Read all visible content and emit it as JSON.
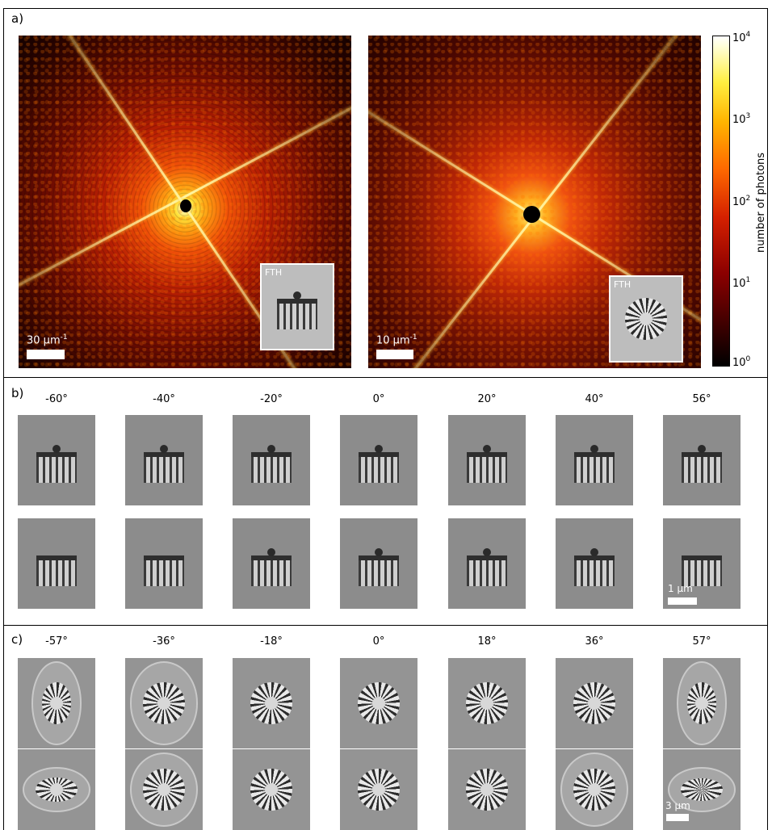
{
  "panel_a": {
    "label": "a)",
    "left_pattern": {
      "scale_text": "30 μm",
      "scale_exp": "-1",
      "inset_label": "FTH"
    },
    "right_pattern": {
      "scale_text": "10 μm",
      "scale_exp": "-1",
      "inset_label": "FTH"
    },
    "colorbar": {
      "label": "number of photons",
      "ticks": [
        {
          "base": "10",
          "exp": "4"
        },
        {
          "base": "10",
          "exp": "3"
        },
        {
          "base": "10",
          "exp": "2"
        },
        {
          "base": "10",
          "exp": "1"
        },
        {
          "base": "10",
          "exp": "0"
        }
      ],
      "colors": {
        "low": "#000000",
        "mid": "#d42000",
        "high": "#ffffff"
      }
    }
  },
  "panel_b": {
    "label": "b)",
    "angles": [
      "-60°",
      "-40°",
      "-20°",
      "0°",
      "20°",
      "40°",
      "56°"
    ],
    "scale_text": "1 µm"
  },
  "panel_c": {
    "label": "c)",
    "angles": [
      "-57°",
      "-36°",
      "-18°",
      "0°",
      "18°",
      "36°",
      "57°"
    ],
    "scale_text": "3 µm"
  }
}
